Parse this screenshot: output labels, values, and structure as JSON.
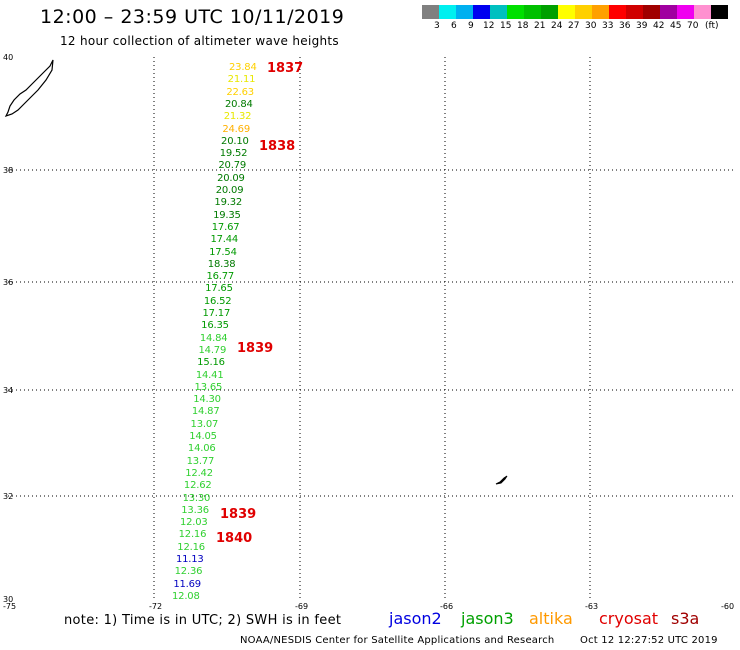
{
  "header": {
    "title": "12:00 – 23:59 UTC 10/11/2019",
    "subtitle": "12 hour collection of altimeter wave heights"
  },
  "colorbar": {
    "cells": [
      "#808080",
      "#00f0f0",
      "#00b0f0",
      "#0000f0",
      "#00c0c0",
      "#00e000",
      "#00c000",
      "#00a000",
      "#ffff00",
      "#ffd000",
      "#ffa000",
      "#ff0000",
      "#d00000",
      "#a00000",
      "#a000a0",
      "#f000f0",
      "#ff90d0",
      "#000000"
    ],
    "labels": [
      "3",
      "6",
      "9",
      "12",
      "15",
      "18",
      "21",
      "24",
      "27",
      "30",
      "33",
      "36",
      "39",
      "42",
      "45",
      "70"
    ],
    "unit": "(ft)"
  },
  "axes": {
    "lat_labels": [
      "40",
      "38",
      "36",
      "34",
      "32",
      "30"
    ],
    "lon_labels": [
      "-75",
      "-72",
      "-69",
      "-66",
      "-63",
      "-60"
    ]
  },
  "observations": [
    {
      "value": "23.84",
      "color": "#ffd000"
    },
    {
      "value": "21.11",
      "color": "#e8e800"
    },
    {
      "value": "22.63",
      "color": "#ffd000"
    },
    {
      "value": "20.84",
      "color": "#007a00"
    },
    {
      "value": "21.32",
      "color": "#e8e800"
    },
    {
      "value": "24.69",
      "color": "#ffb000"
    },
    {
      "value": "20.10",
      "color": "#007a00"
    },
    {
      "value": "19.52",
      "color": "#007a00"
    },
    {
      "value": "20.79",
      "color": "#007a00"
    },
    {
      "value": "20.09",
      "color": "#007a00"
    },
    {
      "value": "20.09",
      "color": "#007a00"
    },
    {
      "value": "19.32",
      "color": "#007a00"
    },
    {
      "value": "19.35",
      "color": "#007a00"
    },
    {
      "value": "17.67",
      "color": "#009a00"
    },
    {
      "value": "17.44",
      "color": "#009a00"
    },
    {
      "value": "17.54",
      "color": "#009a00"
    },
    {
      "value": "18.38",
      "color": "#007a00"
    },
    {
      "value": "16.77",
      "color": "#009a00"
    },
    {
      "value": "17.65",
      "color": "#009a00"
    },
    {
      "value": "16.52",
      "color": "#009a00"
    },
    {
      "value": "17.17",
      "color": "#009a00"
    },
    {
      "value": "16.35",
      "color": "#009a00"
    },
    {
      "value": "14.84",
      "color": "#30d030"
    },
    {
      "value": "14.79",
      "color": "#30d030"
    },
    {
      "value": "15.16",
      "color": "#009a00"
    },
    {
      "value": "14.41",
      "color": "#30d030"
    },
    {
      "value": "13.65",
      "color": "#30d030"
    },
    {
      "value": "14.30",
      "color": "#30d030"
    },
    {
      "value": "14.87",
      "color": "#30d030"
    },
    {
      "value": "13.07",
      "color": "#30d030"
    },
    {
      "value": "14.05",
      "color": "#30d030"
    },
    {
      "value": "14.06",
      "color": "#30d030"
    },
    {
      "value": "13.77",
      "color": "#30d030"
    },
    {
      "value": "12.42",
      "color": "#30d030"
    },
    {
      "value": "12.62",
      "color": "#30d030"
    },
    {
      "value": "13.30",
      "color": "#30d030"
    },
    {
      "value": "13.36",
      "color": "#30d030"
    },
    {
      "value": "12.03",
      "color": "#30d030"
    },
    {
      "value": "12.16",
      "color": "#30d030"
    },
    {
      "value": "12.16",
      "color": "#30d030"
    },
    {
      "value": "11.13",
      "color": "#0000c0"
    },
    {
      "value": "12.36",
      "color": "#30d030"
    },
    {
      "value": "11.69",
      "color": "#0000c0"
    },
    {
      "value": "12.08",
      "color": "#30d030"
    }
  ],
  "pass_labels": [
    "1837",
    "1838",
    "1839",
    "1839",
    "1840"
  ],
  "footer": {
    "note": "note: 1) Time is in UTC; 2) SWH is in feet",
    "satellites": [
      {
        "name": "jason2",
        "color": "#0000e0"
      },
      {
        "name": "jason3",
        "color": "#00a000"
      },
      {
        "name": "altika",
        "color": "#ff9900"
      },
      {
        "name": "cryosat",
        "color": "#e00000"
      },
      {
        "name": "s3a",
        "color": "#a00000"
      }
    ],
    "credit": "NOAA/NESDIS Center for Satellite Applications and Research",
    "timestamp": "Oct 12 12:27:52 UTC 2019"
  }
}
